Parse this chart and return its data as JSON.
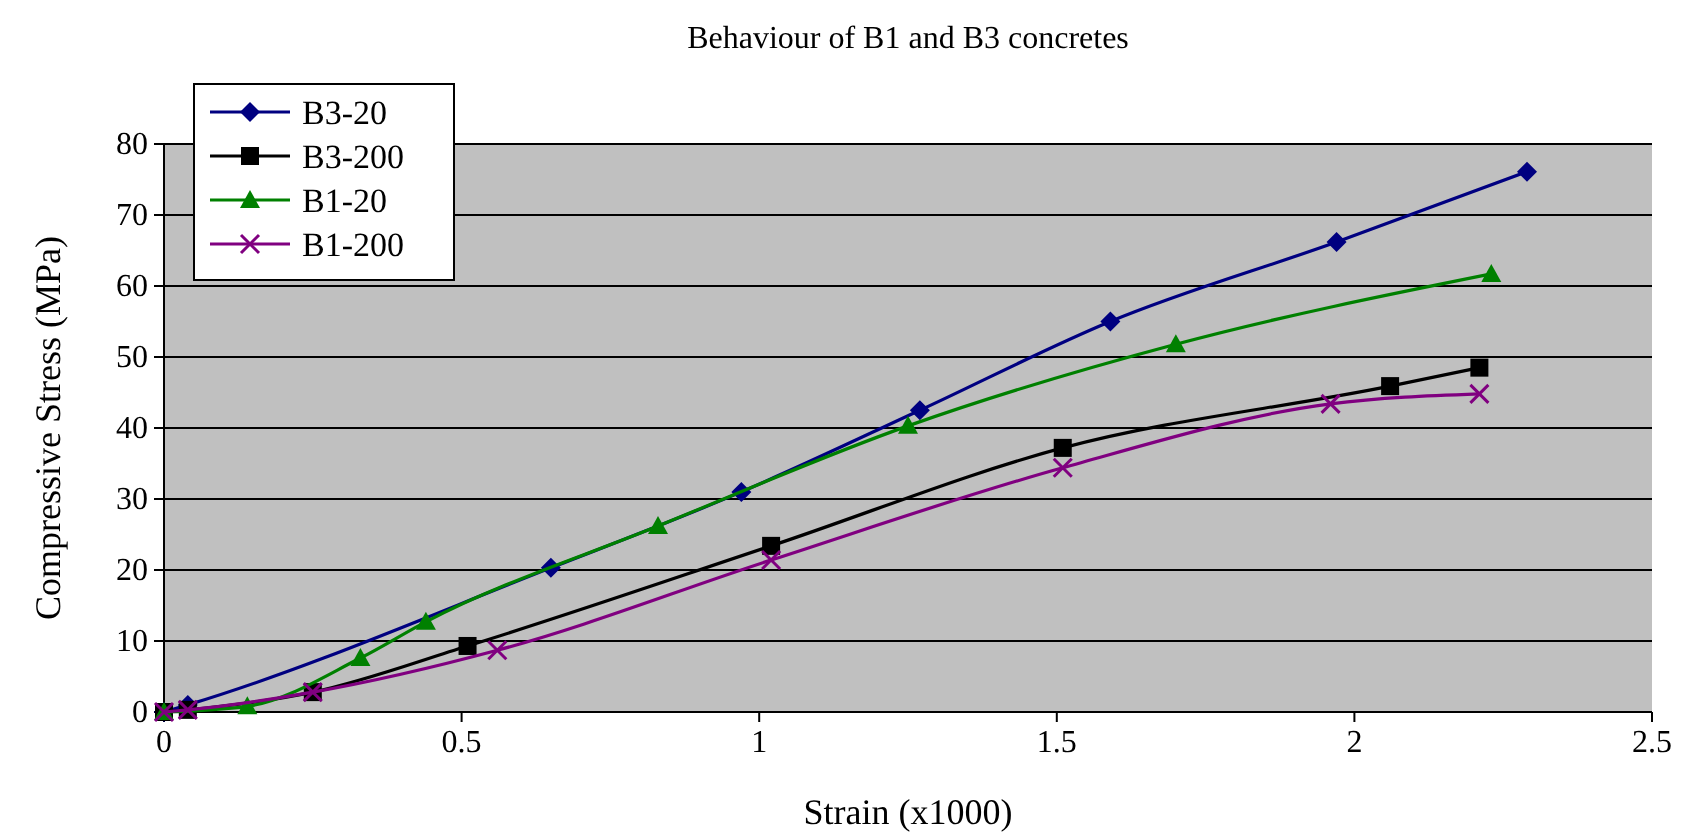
{
  "chart_data": {
    "type": "line",
    "title": "Behaviour of B1 and B3 concretes",
    "xlabel": "Strain (x1000)",
    "ylabel": "Compressive Stress (MPa)",
    "xlim": [
      0,
      2.5
    ],
    "xticks": [
      0,
      0.5,
      1,
      1.5,
      2,
      2.5
    ],
    "ylim": [
      0,
      80
    ],
    "yticks": [
      0,
      10,
      20,
      30,
      40,
      50,
      60,
      70,
      80
    ],
    "grid": "y",
    "legend": "top left",
    "series": [
      {
        "name": "B3-20",
        "color": "#000080",
        "marker": "diamond",
        "x": [
          0,
          0.04,
          0.65,
          0.97,
          1.27,
          1.59,
          1.97,
          2.29
        ],
        "values": [
          0,
          1,
          20.3,
          31,
          42.5,
          55,
          66.2,
          76.1
        ]
      },
      {
        "name": "B3-200",
        "color": "#000000",
        "marker": "square",
        "x": [
          0,
          0.04,
          0.25,
          0.51,
          1.02,
          1.51,
          2.06,
          2.21
        ],
        "values": [
          0,
          0.3,
          2.8,
          9.3,
          23.4,
          37.2,
          45.9,
          48.5
        ]
      },
      {
        "name": "B1-20",
        "color": "#008000",
        "marker": "triangle",
        "x": [
          0,
          0.14,
          0.33,
          0.44,
          0.83,
          1.25,
          1.7,
          2.23
        ],
        "values": [
          0,
          0.8,
          7.6,
          12.7,
          26.2,
          40.3,
          51.8,
          61.7
        ]
      },
      {
        "name": "B1-200",
        "color": "#800080",
        "marker": "cross",
        "x": [
          0,
          0.04,
          0.25,
          0.56,
          1.02,
          1.51,
          1.96,
          2.21
        ],
        "values": [
          0,
          0.3,
          2.8,
          8.7,
          21.4,
          34.4,
          43.4,
          44.8
        ]
      }
    ]
  }
}
